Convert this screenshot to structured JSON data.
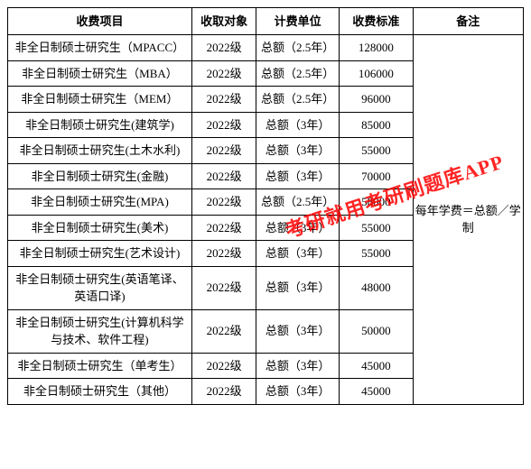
{
  "table": {
    "headers": {
      "item": "收费项目",
      "target": "收取对象",
      "unit": "计费单位",
      "fee": "收费标准",
      "note": "备注"
    },
    "note_text": "每年学费＝总额／学制",
    "rows": [
      {
        "item": "非全日制硕士研究生（MPACC）",
        "target": "2022级",
        "unit": "总额（2.5年）",
        "fee": "128000"
      },
      {
        "item": "非全日制硕士研究生（MBA）",
        "target": "2022级",
        "unit": "总额（2.5年）",
        "fee": "106000"
      },
      {
        "item": "非全日制硕士研究生（MEM）",
        "target": "2022级",
        "unit": "总额（2.5年）",
        "fee": "96000"
      },
      {
        "item": "非全日制硕士研究生(建筑学)",
        "target": "2022级",
        "unit": "总额（3年）",
        "fee": "85000"
      },
      {
        "item": "非全日制硕士研究生(土木水利)",
        "target": "2022级",
        "unit": "总额（3年）",
        "fee": "55000"
      },
      {
        "item": "非全日制硕士研究生(金融)",
        "target": "2022级",
        "unit": "总额（3年）",
        "fee": "70000"
      },
      {
        "item": "非全日制硕士研究生(MPA)",
        "target": "2022级",
        "unit": "总额（2.5年）",
        "fee": "58000"
      },
      {
        "item": "非全日制硕士研究生(美术)",
        "target": "2022级",
        "unit": "总额（3年）",
        "fee": "55000"
      },
      {
        "item": "非全日制硕士研究生(艺术设计)",
        "target": "2022级",
        "unit": "总额（3年）",
        "fee": "55000"
      },
      {
        "item": "非全日制硕士研究生(英语笔译、英语口译)",
        "target": "2022级",
        "unit": "总额（3年）",
        "fee": "48000"
      },
      {
        "item": "非全日制硕士研究生(计算机科学与技术、软件工程)",
        "target": "2022级",
        "unit": "总额（3年）",
        "fee": "50000"
      },
      {
        "item": "非全日制硕士研究生（单考生）",
        "target": "2022级",
        "unit": "总额（3年）",
        "fee": "45000"
      },
      {
        "item": "非全日制硕士研究生（其他）",
        "target": "2022级",
        "unit": "总额（3年）",
        "fee": "45000"
      }
    ]
  },
  "watermark": {
    "text": "考研就用考研刷题库APP",
    "color": "#ff0000"
  },
  "style": {
    "border_color": "#000000",
    "background": "#ffffff",
    "font_family": "SimSun",
    "header_fontsize": 13,
    "cell_fontsize": 13
  }
}
